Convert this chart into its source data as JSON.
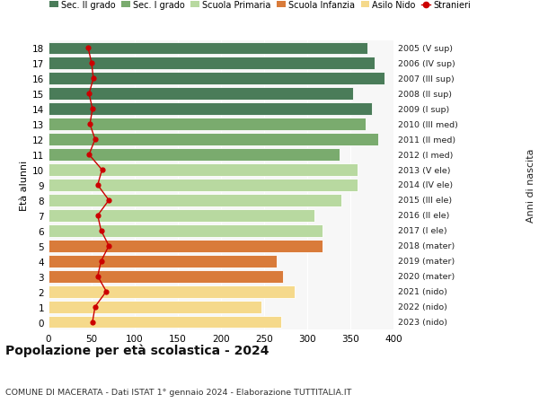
{
  "ages": [
    18,
    17,
    16,
    15,
    14,
    13,
    12,
    11,
    10,
    9,
    8,
    7,
    6,
    5,
    4,
    3,
    2,
    1,
    0
  ],
  "right_labels": [
    "2005 (V sup)",
    "2006 (IV sup)",
    "2007 (III sup)",
    "2008 (II sup)",
    "2009 (I sup)",
    "2010 (III med)",
    "2011 (II med)",
    "2012 (I med)",
    "2013 (V ele)",
    "2014 (IV ele)",
    "2015 (III ele)",
    "2016 (II ele)",
    "2017 (I ele)",
    "2018 (mater)",
    "2019 (mater)",
    "2020 (mater)",
    "2021 (nido)",
    "2022 (nido)",
    "2023 (nido)"
  ],
  "bar_values": [
    370,
    378,
    390,
    353,
    375,
    368,
    382,
    338,
    358,
    358,
    340,
    308,
    318,
    318,
    265,
    272,
    285,
    247,
    270
  ],
  "bar_colors": [
    "#4a7c59",
    "#4a7c59",
    "#4a7c59",
    "#4a7c59",
    "#4a7c59",
    "#7aab6e",
    "#7aab6e",
    "#7aab6e",
    "#b8d9a0",
    "#b8d9a0",
    "#b8d9a0",
    "#b8d9a0",
    "#b8d9a0",
    "#d97b3a",
    "#d97b3a",
    "#d97b3a",
    "#f5d98b",
    "#f5d98b",
    "#f5d98b"
  ],
  "stranieri": [
    46,
    50,
    52,
    47,
    51,
    48,
    54,
    47,
    62,
    57,
    70,
    57,
    61,
    70,
    61,
    57,
    67,
    54,
    51
  ],
  "legend_labels": [
    "Sec. II grado",
    "Sec. I grado",
    "Scuola Primaria",
    "Scuola Infanzia",
    "Asilo Nido",
    "Stranieri"
  ],
  "legend_colors": [
    "#4a7c59",
    "#7aab6e",
    "#b8d9a0",
    "#d97b3a",
    "#f5d98b",
    "#cc0000"
  ],
  "title": "Popolazione per età scolastica - 2024",
  "subtitle": "COMUNE DI MACERATA - Dati ISTAT 1° gennaio 2024 - Elaborazione TUTTITALIA.IT",
  "xlabel_right": "Anni di nascita",
  "ylabel": "Età alunni",
  "xlim": [
    0,
    400
  ],
  "xticks": [
    0,
    50,
    100,
    150,
    200,
    250,
    300,
    350,
    400
  ],
  "background_color": "#ffffff"
}
